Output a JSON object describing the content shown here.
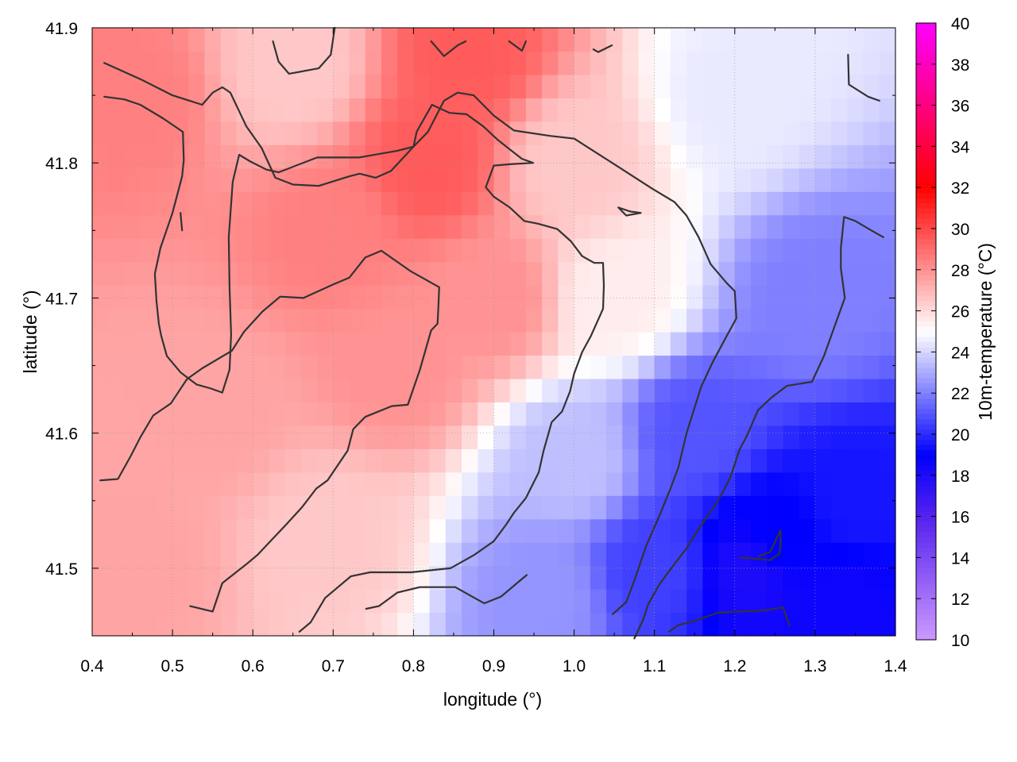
{
  "chart_data": {
    "type": "heatmap",
    "xlabel": "longitude (°)",
    "ylabel": "latitude (°)",
    "xlim": [
      0.4,
      1.4
    ],
    "ylim": [
      41.45,
      41.9
    ],
    "xticks": [
      0.4,
      0.5,
      0.6,
      0.7,
      0.8,
      0.9,
      1.0,
      1.1,
      1.2,
      1.3,
      1.4
    ],
    "xtick_labels": [
      "0.4",
      "0.5",
      "0.6",
      "0.7",
      "0.8",
      "0.9",
      "1.0",
      "1.1",
      "1.2",
      "1.3",
      "1.4"
    ],
    "yticks": [
      41.5,
      41.6,
      41.7,
      41.8,
      41.9
    ],
    "ytick_labels": [
      "41.5",
      "41.6",
      "41.7",
      "41.8",
      "41.9"
    ],
    "grid": true,
    "colorbar": {
      "label": "10m-temperature (°C)",
      "range": [
        10,
        40
      ],
      "ticks": [
        10,
        12,
        14,
        16,
        18,
        20,
        22,
        24,
        26,
        28,
        30,
        32,
        34,
        36,
        38,
        40
      ],
      "tick_labels": [
        "10",
        "12",
        "14",
        "16",
        "18",
        "20",
        "22",
        "24",
        "26",
        "28",
        "30",
        "32",
        "34",
        "36",
        "38",
        "40"
      ],
      "palette": [
        {
          "value": 10,
          "color": "#cc99ff"
        },
        {
          "value": 16,
          "color": "#5522ee"
        },
        {
          "value": 19,
          "color": "#0000ff"
        },
        {
          "value": 25,
          "color": "#ffffff"
        },
        {
          "value": 32,
          "color": "#ff0000"
        },
        {
          "value": 40,
          "color": "#ff00ff"
        }
      ]
    },
    "field_samples": [
      {
        "x": 0.45,
        "y": 41.85,
        "value": 28.5
      },
      {
        "x": 0.65,
        "y": 41.87,
        "value": 26.5
      },
      {
        "x": 0.87,
        "y": 41.88,
        "value": 29.5
      },
      {
        "x": 0.82,
        "y": 41.8,
        "value": 29.5
      },
      {
        "x": 0.7,
        "y": 41.75,
        "value": 28.5
      },
      {
        "x": 0.78,
        "y": 41.65,
        "value": 28.0
      },
      {
        "x": 0.9,
        "y": 41.7,
        "value": 28.0
      },
      {
        "x": 0.55,
        "y": 41.62,
        "value": 27.5
      },
      {
        "x": 0.45,
        "y": 41.5,
        "value": 27.5
      },
      {
        "x": 0.7,
        "y": 41.52,
        "value": 26.5
      },
      {
        "x": 1.0,
        "y": 41.8,
        "value": 26.5
      },
      {
        "x": 1.05,
        "y": 41.7,
        "value": 25.5
      },
      {
        "x": 1.0,
        "y": 41.58,
        "value": 23.5
      },
      {
        "x": 1.2,
        "y": 41.85,
        "value": 24.5
      },
      {
        "x": 1.3,
        "y": 41.7,
        "value": 22.0
      },
      {
        "x": 1.15,
        "y": 41.6,
        "value": 21.0
      },
      {
        "x": 1.1,
        "y": 41.5,
        "value": 20.5
      },
      {
        "x": 1.25,
        "y": 41.52,
        "value": 19.0
      },
      {
        "x": 1.35,
        "y": 41.55,
        "value": 19.5
      },
      {
        "x": 1.22,
        "y": 41.5,
        "value": 18.0
      },
      {
        "x": 1.33,
        "y": 41.47,
        "value": 18.5
      },
      {
        "x": 0.96,
        "y": 41.48,
        "value": 22.5
      }
    ],
    "contours": [
      {
        "points": [
          [
            0.415,
            41.874
          ],
          [
            0.46,
            41.862
          ],
          [
            0.48,
            41.856
          ],
          [
            0.5,
            41.85
          ],
          [
            0.537,
            41.843
          ],
          [
            0.55,
            41.852
          ],
          [
            0.562,
            41.856
          ],
          [
            0.572,
            41.852
          ],
          [
            0.592,
            41.827
          ],
          [
            0.611,
            41.811
          ],
          [
            0.628,
            41.789
          ],
          [
            0.65,
            41.784
          ],
          [
            0.682,
            41.783
          ],
          [
            0.72,
            41.79
          ],
          [
            0.733,
            41.792
          ],
          [
            0.753,
            41.789
          ],
          [
            0.772,
            41.794
          ],
          [
            0.8,
            41.812
          ],
          [
            0.818,
            41.823
          ],
          [
            0.838,
            41.846
          ],
          [
            0.855,
            41.852
          ],
          [
            0.875,
            41.85
          ],
          [
            0.9,
            41.835
          ],
          [
            0.925,
            41.824
          ],
          [
            0.97,
            41.82
          ],
          [
            1.0,
            41.818
          ],
          [
            1.05,
            41.799
          ],
          [
            1.097,
            41.781
          ],
          [
            1.125,
            41.771
          ],
          [
            1.14,
            41.761
          ],
          [
            1.155,
            41.745
          ],
          [
            1.17,
            41.725
          ],
          [
            1.19,
            41.711
          ],
          [
            1.2,
            41.705
          ],
          [
            1.202,
            41.685
          ],
          [
            1.19,
            41.672
          ],
          [
            1.172,
            41.652
          ],
          [
            1.158,
            41.634
          ],
          [
            1.15,
            41.619
          ],
          [
            1.14,
            41.6
          ],
          [
            1.13,
            41.575
          ],
          [
            1.12,
            41.559
          ],
          [
            1.107,
            41.54
          ],
          [
            1.09,
            41.517
          ],
          [
            1.075,
            41.491
          ],
          [
            1.065,
            41.475
          ],
          [
            1.048,
            41.466
          ]
        ]
      },
      {
        "points": [
          [
            0.415,
            41.849
          ],
          [
            0.44,
            41.847
          ],
          [
            0.46,
            41.843
          ],
          [
            0.488,
            41.833
          ],
          [
            0.513,
            41.823
          ],
          [
            0.514,
            41.802
          ],
          [
            0.512,
            41.79
          ],
          [
            0.5,
            41.763
          ],
          [
            0.485,
            41.737
          ],
          [
            0.478,
            41.718
          ],
          [
            0.48,
            41.698
          ],
          [
            0.483,
            41.681
          ],
          [
            0.486,
            41.672
          ],
          [
            0.493,
            41.657
          ],
          [
            0.51,
            41.645
          ],
          [
            0.53,
            41.636
          ],
          [
            0.548,
            41.633
          ],
          [
            0.562,
            41.63
          ],
          [
            0.571,
            41.647
          ],
          [
            0.573,
            41.673
          ],
          [
            0.571,
            41.708
          ],
          [
            0.57,
            41.745
          ],
          [
            0.575,
            41.786
          ],
          [
            0.583,
            41.806
          ],
          [
            0.597,
            41.801
          ],
          [
            0.617,
            41.795
          ],
          [
            0.632,
            41.793
          ],
          [
            0.68,
            41.804
          ],
          [
            0.732,
            41.804
          ],
          [
            0.78,
            41.809
          ],
          [
            0.8,
            41.812
          ]
        ]
      },
      {
        "points": [
          [
            0.8,
            41.812
          ],
          [
            0.804,
            41.823
          ],
          [
            0.823,
            41.843
          ],
          [
            0.845,
            41.837
          ],
          [
            0.866,
            41.836
          ],
          [
            0.887,
            41.827
          ],
          [
            0.905,
            41.817
          ],
          [
            0.92,
            41.81
          ],
          [
            0.935,
            41.803
          ],
          [
            0.949,
            41.8
          ],
          [
            0.92,
            41.799
          ],
          [
            0.9,
            41.798
          ],
          [
            0.89,
            41.782
          ],
          [
            0.9,
            41.775
          ],
          [
            0.92,
            41.767
          ],
          [
            0.938,
            41.757
          ],
          [
            0.955,
            41.755
          ],
          [
            0.979,
            41.751
          ],
          [
            0.996,
            41.742
          ],
          [
            1.01,
            41.731
          ],
          [
            1.025,
            41.726
          ],
          [
            1.036,
            41.726
          ],
          [
            1.037,
            41.709
          ],
          [
            1.036,
            41.692
          ],
          [
            1.021,
            41.672
          ],
          [
            1.01,
            41.66
          ],
          [
            1.0,
            41.644
          ],
          [
            0.995,
            41.631
          ],
          [
            0.985,
            41.616
          ],
          [
            0.972,
            41.608
          ],
          [
            0.962,
            41.587
          ],
          [
            0.956,
            41.571
          ],
          [
            0.94,
            41.552
          ],
          [
            0.925,
            41.541
          ],
          [
            0.915,
            41.532
          ],
          [
            0.9,
            41.52
          ],
          [
            0.876,
            41.51
          ],
          [
            0.846,
            41.5
          ],
          [
            0.797,
            41.497
          ],
          [
            0.746,
            41.497
          ],
          [
            0.722,
            41.494
          ],
          [
            0.69,
            41.478
          ],
          [
            0.672,
            41.46
          ],
          [
            0.658,
            41.453
          ]
        ]
      },
      {
        "points": [
          [
            0.512,
            41.75
          ],
          [
            0.51,
            41.763
          ]
        ]
      },
      {
        "points": [
          [
            0.522,
            41.472
          ],
          [
            0.55,
            41.468
          ],
          [
            0.562,
            41.489
          ],
          [
            0.592,
            41.503
          ],
          [
            0.606,
            41.51
          ],
          [
            0.622,
            41.52
          ],
          [
            0.641,
            41.532
          ],
          [
            0.661,
            41.545
          ],
          [
            0.679,
            41.559
          ],
          [
            0.693,
            41.565
          ],
          [
            0.718,
            41.587
          ],
          [
            0.725,
            41.603
          ],
          [
            0.74,
            41.612
          ],
          [
            0.773,
            41.62
          ],
          [
            0.793,
            41.621
          ],
          [
            0.808,
            41.647
          ],
          [
            0.822,
            41.676
          ],
          [
            0.83,
            41.681
          ],
          [
            0.831,
            41.693
          ],
          [
            0.832,
            41.708
          ],
          [
            0.796,
            41.72
          ],
          [
            0.76,
            41.735
          ],
          [
            0.74,
            41.73
          ],
          [
            0.72,
            41.715
          ],
          [
            0.7,
            41.71
          ],
          [
            0.663,
            41.7
          ],
          [
            0.634,
            41.701
          ],
          [
            0.612,
            41.69
          ],
          [
            0.589,
            41.675
          ],
          [
            0.574,
            41.661
          ],
          [
            0.537,
            41.648
          ],
          [
            0.518,
            41.64
          ],
          [
            0.498,
            41.622
          ],
          [
            0.476,
            41.613
          ],
          [
            0.46,
            41.597
          ],
          [
            0.448,
            41.583
          ],
          [
            0.432,
            41.566
          ],
          [
            0.41,
            41.565
          ]
        ]
      },
      {
        "points": [
          [
            1.075,
            41.448
          ],
          [
            1.086,
            41.462
          ],
          [
            1.092,
            41.473
          ],
          [
            1.106,
            41.488
          ],
          [
            1.121,
            41.5
          ],
          [
            1.139,
            41.514
          ],
          [
            1.155,
            41.529
          ],
          [
            1.17,
            41.542
          ],
          [
            1.184,
            41.555
          ],
          [
            1.195,
            41.568
          ],
          [
            1.206,
            41.588
          ],
          [
            1.215,
            41.598
          ],
          [
            1.229,
            41.617
          ],
          [
            1.245,
            41.626
          ],
          [
            1.265,
            41.635
          ],
          [
            1.296,
            41.638
          ],
          [
            1.311,
            41.657
          ],
          [
            1.326,
            41.682
          ],
          [
            1.337,
            41.7
          ],
          [
            1.332,
            41.722
          ],
          [
            1.332,
            41.737
          ],
          [
            1.336,
            41.76
          ],
          [
            1.35,
            41.757
          ],
          [
            1.37,
            41.75
          ],
          [
            1.385,
            41.745
          ]
        ]
      },
      {
        "points": [
          [
            1.118,
            41.453
          ],
          [
            1.13,
            41.458
          ],
          [
            1.15,
            41.461
          ],
          [
            1.178,
            41.467
          ],
          [
            1.238,
            41.469
          ],
          [
            1.26,
            41.471
          ],
          [
            1.268,
            41.458
          ]
        ]
      },
      {
        "points": [
          [
            1.206,
            41.508
          ],
          [
            1.227,
            41.507
          ],
          [
            1.244,
            41.506
          ],
          [
            1.256,
            41.511
          ],
          [
            1.257,
            41.518
          ],
          [
            1.257,
            41.528
          ],
          [
            1.252,
            41.522
          ],
          [
            1.244,
            41.512
          ],
          [
            1.23,
            41.509
          ]
        ]
      },
      {
        "points": [
          [
            1.055,
            41.767
          ],
          [
            1.07,
            41.764
          ],
          [
            1.083,
            41.763
          ],
          [
            1.065,
            41.761
          ],
          [
            1.055,
            41.767
          ]
        ]
      },
      {
        "points": [
          [
            0.625,
            41.89
          ],
          [
            0.632,
            41.875
          ],
          [
            0.645,
            41.866
          ],
          [
            0.682,
            41.87
          ],
          [
            0.697,
            41.88
          ],
          [
            0.702,
            41.9
          ]
        ]
      },
      {
        "points": [
          [
            0.822,
            41.89
          ],
          [
            0.838,
            41.879
          ],
          [
            0.855,
            41.887
          ],
          [
            0.865,
            41.89
          ]
        ]
      },
      {
        "points": [
          [
            0.919,
            41.89
          ],
          [
            0.935,
            41.883
          ],
          [
            0.94,
            41.89
          ]
        ]
      },
      {
        "points": [
          [
            1.024,
            41.884
          ],
          [
            1.03,
            41.882
          ],
          [
            1.047,
            41.887
          ]
        ]
      },
      {
        "points": [
          [
            1.341,
            41.88
          ],
          [
            1.342,
            41.858
          ],
          [
            1.366,
            41.849
          ],
          [
            1.38,
            41.846
          ]
        ]
      },
      {
        "points": [
          [
            0.741,
            41.47
          ],
          [
            0.757,
            41.472
          ],
          [
            0.78,
            41.482
          ],
          [
            0.808,
            41.486
          ],
          [
            0.852,
            41.486
          ],
          [
            0.888,
            41.474
          ],
          [
            0.909,
            41.479
          ],
          [
            0.931,
            41.49
          ],
          [
            0.941,
            41.495
          ]
        ]
      }
    ]
  }
}
